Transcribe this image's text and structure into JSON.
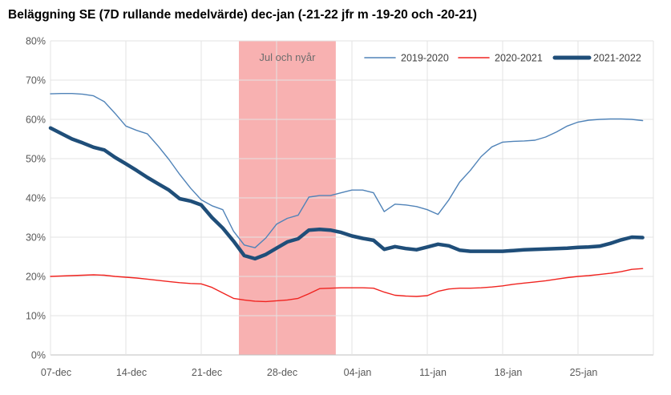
{
  "chart_data": {
    "type": "line",
    "title": "Beläggning SE (7D rullande medelvärde) dec-jan (-21-22 jfr m -19-20 och -20-21)",
    "x_frequency": "daily",
    "x_start_date": "07-dec",
    "x_end_date": "31-jan",
    "x_axis_total_days": 56,
    "x_tick_labels": [
      "07-dec",
      "14-dec",
      "21-dec",
      "28-dec",
      "04-jan",
      "11-jan",
      "18-jan",
      "25-jan"
    ],
    "x_tick_day_indices": [
      0,
      7,
      14,
      21,
      28,
      35,
      42,
      49
    ],
    "y_axis": {
      "min": 0,
      "max": 80,
      "step": 10,
      "unit": "%",
      "tick_labels": [
        "0%",
        "10%",
        "20%",
        "30%",
        "40%",
        "50%",
        "60%",
        "70%",
        "80%"
      ]
    },
    "grid": true,
    "legend_position": "top-right",
    "annotation_band": {
      "label": "Jul och nyår",
      "color": "#F8B1B1",
      "from_date": "24-dec",
      "to_date": "02-jan",
      "from_day": 17.5,
      "to_day": 26.5
    },
    "series": [
      {
        "name": "2019-2020",
        "color": "#5083B8",
        "stroke_width": 1.4,
        "values": [
          66.5,
          66.6,
          66.6,
          66.4,
          66.0,
          64.5,
          61.5,
          58.3,
          57.2,
          56.3,
          53.2,
          49.8,
          46.0,
          42.5,
          39.5,
          38.0,
          37.0,
          31.5,
          28.0,
          27.3,
          29.8,
          33.3,
          34.8,
          35.6,
          40.2,
          40.6,
          40.6,
          41.3,
          42.0,
          42.0,
          41.3,
          36.5,
          38.4,
          38.2,
          37.8,
          37.0,
          35.8,
          39.5,
          44.0,
          47.0,
          50.5,
          53.0,
          54.2,
          54.4,
          54.5,
          54.7,
          55.5,
          56.8,
          58.3,
          59.3,
          59.8,
          60.0,
          60.1,
          60.1,
          60.0,
          59.7
        ]
      },
      {
        "name": "2020-2021",
        "color": "#F02420",
        "stroke_width": 1.4,
        "values": [
          20.0,
          20.1,
          20.2,
          20.3,
          20.4,
          20.3,
          20.0,
          19.8,
          19.6,
          19.3,
          19.0,
          18.7,
          18.4,
          18.2,
          18.1,
          17.2,
          15.8,
          14.4,
          14.0,
          13.7,
          13.6,
          13.8,
          14.0,
          14.4,
          15.6,
          16.9,
          17.0,
          17.1,
          17.1,
          17.1,
          17.0,
          16.0,
          15.2,
          15.0,
          14.9,
          15.1,
          16.2,
          16.8,
          17.0,
          17.0,
          17.1,
          17.3,
          17.6,
          18.0,
          18.3,
          18.6,
          18.9,
          19.3,
          19.7,
          20.0,
          20.2,
          20.5,
          20.8,
          21.2,
          21.8,
          22.0
        ]
      },
      {
        "name": "2021-2022",
        "color": "#1F4E79",
        "stroke_width": 4.5,
        "values": [
          57.8,
          56.4,
          55.0,
          54.0,
          52.9,
          52.2,
          50.3,
          48.7,
          47.0,
          45.2,
          43.6,
          42.0,
          39.8,
          39.2,
          38.2,
          35.0,
          32.3,
          29.0,
          25.3,
          24.5,
          25.6,
          27.2,
          28.8,
          29.6,
          31.8,
          32.0,
          31.8,
          31.2,
          30.3,
          29.7,
          29.2,
          26.9,
          27.6,
          27.1,
          26.8,
          27.5,
          28.2,
          27.8,
          26.7,
          26.4,
          26.4,
          26.4,
          26.4,
          26.6,
          26.8,
          26.9,
          27.0,
          27.1,
          27.2,
          27.4,
          27.5,
          27.7,
          28.4,
          29.3,
          30.0,
          29.9
        ]
      }
    ],
    "colors": {
      "gridline": "#E3E3E3",
      "bottom_axis_line": "#BFBFBF",
      "axis_label_text": "#595959",
      "legend_text": "#3F3F3F",
      "band_label_text": "#6E6E6E",
      "background": "#FFFFFF"
    }
  }
}
